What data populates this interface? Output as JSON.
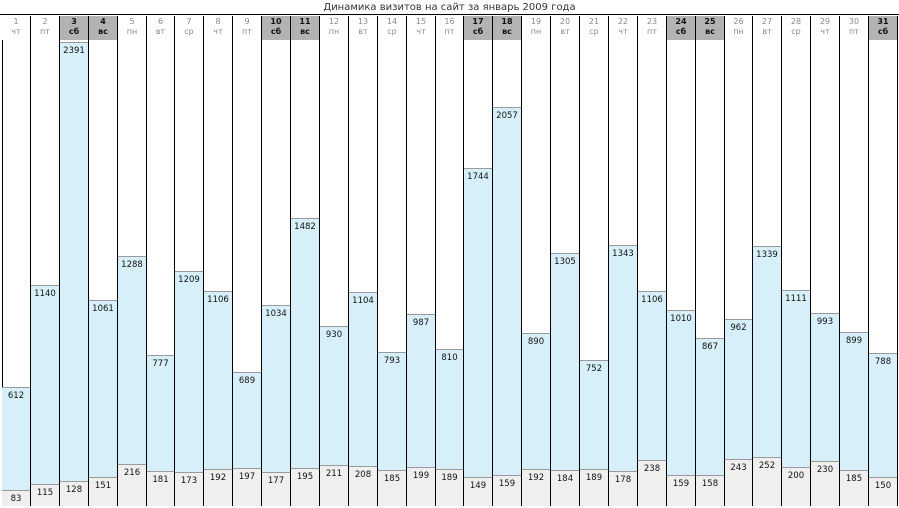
{
  "title": "Динамика визитов на сайт за январь 2009 года",
  "colors": {
    "visits": "#d6eff8",
    "hosts": "#efefef",
    "weekend_header": "#b3b3b3",
    "grid": "#000000"
  },
  "chart_data": {
    "type": "bar",
    "title": "Динамика визитов на сайт за январь 2009 года",
    "categories": [
      "1",
      "2",
      "3",
      "4",
      "5",
      "6",
      "7",
      "8",
      "9",
      "10",
      "11",
      "12",
      "13",
      "14",
      "15",
      "16",
      "17",
      "18",
      "19",
      "20",
      "21",
      "22",
      "23",
      "24",
      "25",
      "26",
      "27",
      "28",
      "29",
      "30",
      "31"
    ],
    "weekday_labels": [
      "чт",
      "пт",
      "сб",
      "вс",
      "пн",
      "вт",
      "ср",
      "чт",
      "пт",
      "сб",
      "вс",
      "пн",
      "вт",
      "ср",
      "чт",
      "пт",
      "сб",
      "вс",
      "пн",
      "вт",
      "ср",
      "чт",
      "пт",
      "сб",
      "вс",
      "пн",
      "вт",
      "ср",
      "чт",
      "пт",
      "сб"
    ],
    "weekend_days": [
      "3",
      "4",
      "10",
      "11",
      "17",
      "18",
      "24",
      "25",
      "31"
    ],
    "series": [
      {
        "values": [
          612,
          1140,
          2391,
          1061,
          1288,
          777,
          1209,
          1106,
          689,
          1034,
          1482,
          930,
          1104,
          793,
          987,
          810,
          1744,
          2057,
          890,
          1305,
          752,
          1343,
          1106,
          1010,
          867,
          962,
          1339,
          1111,
          993,
          899,
          788
        ]
      },
      {
        "values": [
          83,
          115,
          128,
          151,
          216,
          181,
          173,
          192,
          197,
          177,
          195,
          211,
          208,
          185,
          199,
          189,
          149,
          159,
          192,
          184,
          189,
          178,
          238,
          159,
          158,
          243,
          252,
          200,
          230,
          185,
          150
        ]
      }
    ],
    "ylim": [
      0,
      2391
    ],
    "grid": false
  }
}
